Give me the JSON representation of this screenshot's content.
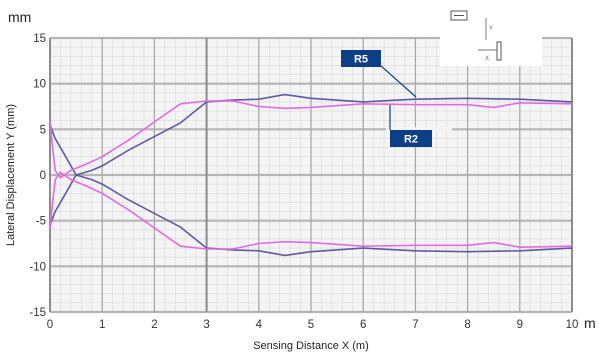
{
  "chart_data": {
    "type": "line",
    "xlabel": "Sensing Distance X (m)",
    "ylabel": "Lateral Displacement Y (mm)",
    "x_unit": "m",
    "y_unit": "mm",
    "xlim": [
      0,
      10
    ],
    "ylim": [
      -15,
      15
    ],
    "x_ticks": [
      0,
      1,
      2,
      3,
      4,
      5,
      6,
      7,
      8,
      9,
      10
    ],
    "y_ticks": [
      15,
      10,
      5,
      0,
      -5,
      -10,
      -15
    ],
    "grid": true,
    "colors": {
      "R5": "#5b5b9e",
      "R2": "#e36ae3",
      "callout": "#0d3f86"
    },
    "annotations": [
      {
        "label": "R5",
        "series": "R5"
      },
      {
        "label": "R2",
        "series": "R2"
      }
    ],
    "diagram": {
      "y_label": "Y",
      "x_label": "X"
    },
    "series": [
      {
        "name": "R5",
        "color": "#5b5b9e",
        "x": [
          0,
          0.1,
          0.3,
          0.5,
          0.8,
          1.0,
          1.5,
          2.0,
          2.5,
          3.0,
          3.5,
          4.0,
          4.5,
          5.0,
          6.0,
          7.0,
          8.0,
          9.0,
          10.0
        ],
        "y": [
          -5.5,
          -4,
          -2,
          0,
          0.5,
          1,
          2.7,
          4.2,
          5.7,
          8,
          8.2,
          8.3,
          8.8,
          8.4,
          8,
          8.3,
          8.4,
          8.3,
          8
        ]
      },
      {
        "name": "R5",
        "color": "#5b5b9e",
        "x": [
          0,
          0.1,
          0.3,
          0.5,
          0.8,
          1.0,
          1.5,
          2.0,
          2.5,
          3.0,
          3.5,
          4.0,
          4.5,
          5.0,
          6.0,
          7.0,
          8.0,
          9.0,
          10.0
        ],
        "y": [
          5.5,
          4,
          2,
          0,
          -0.5,
          -1,
          -2.7,
          -4.2,
          -5.7,
          -8,
          -8.2,
          -8.3,
          -8.8,
          -8.4,
          -8,
          -8.3,
          -8.4,
          -8.3,
          -8
        ]
      },
      {
        "name": "R2",
        "color": "#e36ae3",
        "x": [
          0,
          0.05,
          0.1,
          0.2,
          0.4,
          0.7,
          1.0,
          1.5,
          2.0,
          2.5,
          3.0,
          3.5,
          4.0,
          4.5,
          5.0,
          6.0,
          7.0,
          8.0,
          8.5,
          9.0,
          10.0
        ],
        "y": [
          6,
          3,
          0.5,
          -0.3,
          0.5,
          1.2,
          2,
          3.8,
          5.8,
          7.8,
          8.1,
          8.1,
          7.5,
          7.3,
          7.4,
          7.8,
          7.7,
          7.7,
          7.4,
          7.9,
          7.8
        ]
      },
      {
        "name": "R2",
        "color": "#e36ae3",
        "x": [
          0,
          0.05,
          0.1,
          0.2,
          0.4,
          0.7,
          1.0,
          1.5,
          2.0,
          2.5,
          3.0,
          3.5,
          4.0,
          4.5,
          5.0,
          6.0,
          7.0,
          8.0,
          8.5,
          9.0,
          10.0
        ],
        "y": [
          -6,
          -3,
          -0.5,
          0.3,
          -0.5,
          -1.2,
          -2,
          -3.8,
          -5.8,
          -7.8,
          -8.1,
          -8.1,
          -7.5,
          -7.3,
          -7.4,
          -7.8,
          -7.7,
          -7.7,
          -7.4,
          -7.9,
          -7.8
        ]
      }
    ]
  }
}
